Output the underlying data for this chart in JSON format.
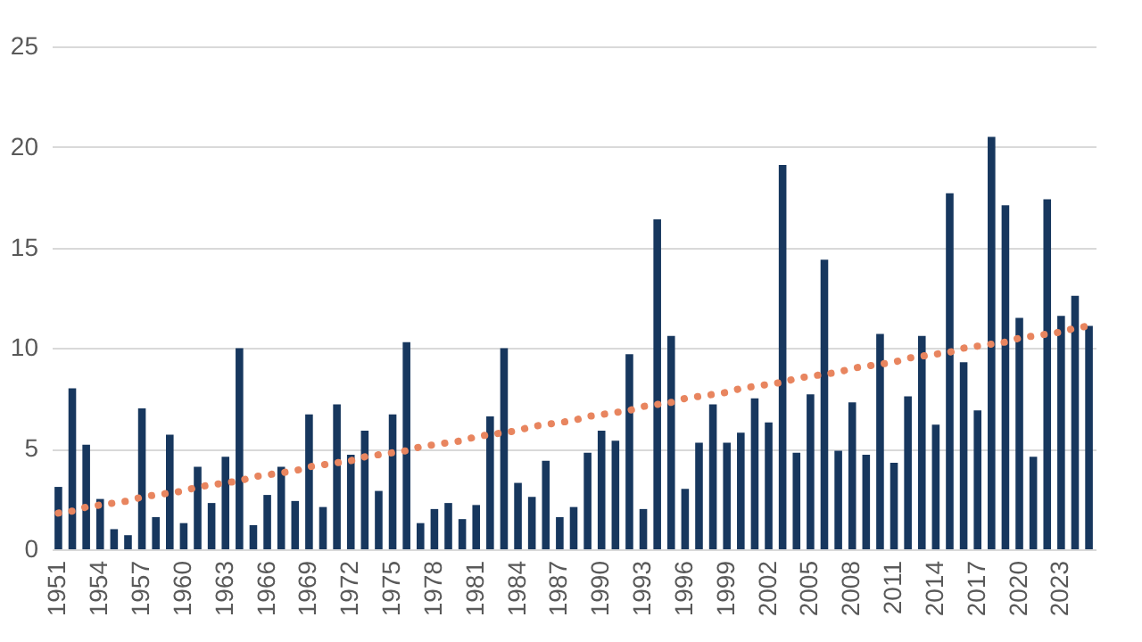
{
  "chart_data": {
    "type": "bar",
    "categories": [
      "1951",
      null,
      null,
      "1954",
      null,
      null,
      "1957",
      null,
      null,
      "1960",
      null,
      null,
      "1963",
      null,
      null,
      "1966",
      null,
      null,
      "1969",
      null,
      null,
      "1972",
      null,
      null,
      "1975",
      null,
      null,
      "1978",
      null,
      null,
      "1981",
      null,
      null,
      "1984",
      null,
      null,
      "1987",
      null,
      null,
      "1990",
      null,
      null,
      "1993",
      null,
      null,
      "1996",
      null,
      null,
      "1999",
      null,
      null,
      "2002",
      null,
      null,
      "2005",
      null,
      null,
      "2008",
      null,
      null,
      "2011",
      null,
      null,
      "2014",
      null,
      null,
      "2017",
      null,
      null,
      "2020",
      null,
      null,
      "2023",
      null,
      null
    ],
    "series": [
      {
        "color": "#17375e",
        "values": [
          3.1,
          8.0,
          5.2,
          2.5,
          1.0,
          0.7,
          7.0,
          1.6,
          5.7,
          1.3,
          4.1,
          2.3,
          4.6,
          10.0,
          1.2,
          2.7,
          4.1,
          2.4,
          6.7,
          2.1,
          7.2,
          4.7,
          5.9,
          2.9,
          6.7,
          10.3,
          1.3,
          2.0,
          2.3,
          1.5,
          2.2,
          6.6,
          10.0,
          3.3,
          2.6,
          4.4,
          1.6,
          2.1,
          4.8,
          5.9,
          5.4,
          9.7,
          2.0,
          16.4,
          10.6,
          3.0,
          5.3,
          7.2,
          5.3,
          5.8,
          7.5,
          6.3,
          19.1,
          4.8,
          7.7,
          14.4,
          4.9,
          7.3,
          4.7,
          10.7,
          4.3,
          7.6,
          10.6,
          6.2,
          17.7,
          9.3,
          6.9,
          20.5,
          17.1,
          11.5,
          4.6,
          17.4,
          11.6,
          12.6,
          11.1
        ]
      },
      {
        "type": "line",
        "color": "#e8855f",
        "line_style": "dotted",
        "values": [
          1.8,
          1.9,
          2.1,
          2.2,
          2.3,
          2.4,
          2.6,
          2.7,
          2.8,
          2.9,
          3.1,
          3.2,
          3.3,
          3.4,
          3.6,
          3.7,
          3.8,
          3.9,
          4.1,
          4.2,
          4.3,
          4.4,
          4.6,
          4.7,
          4.8,
          4.9,
          5.1,
          5.2,
          5.3,
          5.4,
          5.6,
          5.7,
          5.8,
          5.9,
          6.1,
          6.2,
          6.3,
          6.4,
          6.6,
          6.7,
          6.8,
          6.9,
          7.1,
          7.2,
          7.3,
          7.5,
          7.6,
          7.7,
          7.8,
          8.0,
          8.1,
          8.2,
          8.3,
          8.5,
          8.6,
          8.7,
          8.8,
          9.0,
          9.1,
          9.2,
          9.3,
          9.5,
          9.6,
          9.7,
          9.8,
          10.0,
          10.1,
          10.2,
          10.3,
          10.5,
          10.6,
          10.7,
          10.8,
          11.0,
          11.1
        ]
      }
    ],
    "ylim": [
      0,
      25
    ],
    "yticks": [
      0,
      5,
      10,
      15,
      20,
      25
    ],
    "grid": "y"
  }
}
